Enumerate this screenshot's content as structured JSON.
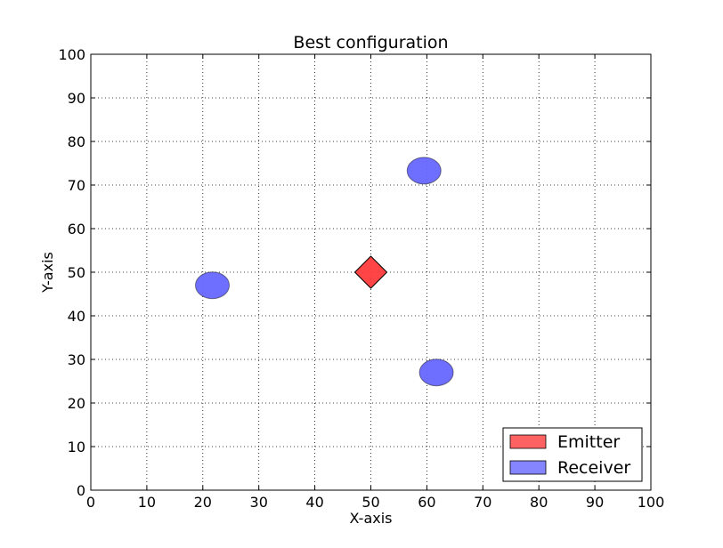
{
  "chart_data": {
    "type": "scatter",
    "title": "Best configuration",
    "xlabel": "X-axis",
    "ylabel": "Y-axis",
    "xlim": [
      0,
      100
    ],
    "ylim": [
      0,
      100
    ],
    "xticks": [
      0,
      10,
      20,
      30,
      40,
      50,
      60,
      70,
      80,
      90,
      100
    ],
    "yticks": [
      0,
      10,
      20,
      30,
      40,
      50,
      60,
      70,
      80,
      90,
      100
    ],
    "grid": true,
    "legend_position": "lower-right",
    "series": [
      {
        "name": "Emitter",
        "marker": "diamond",
        "color": "#ff3b3b",
        "points": [
          {
            "x": 50,
            "y": 50
          }
        ]
      },
      {
        "name": "Receiver",
        "marker": "ellipse",
        "color": "#6666ff",
        "points": [
          {
            "x": 21.7,
            "y": 47
          },
          {
            "x": 59.5,
            "y": 73.3
          },
          {
            "x": 61.7,
            "y": 27
          }
        ]
      }
    ]
  }
}
